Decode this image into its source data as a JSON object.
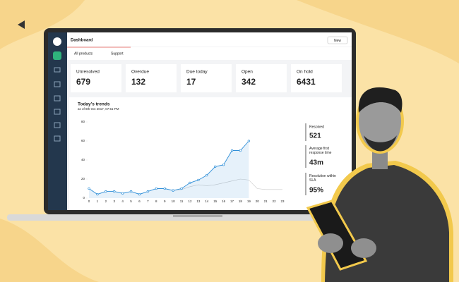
{
  "header": {
    "title": "Dashboard",
    "button": "New"
  },
  "filters": [
    "All products",
    "Support"
  ],
  "cards": [
    {
      "label": "Unresolved",
      "value": 679
    },
    {
      "label": "Overdue",
      "value": 132
    },
    {
      "label": "Due today",
      "value": 17
    },
    {
      "label": "Open",
      "value": 342
    },
    {
      "label": "On hold",
      "value": 6431
    }
  ],
  "chart_data": {
    "type": "line",
    "title": "Today's trends",
    "subtitle": "as of 8th Oct 2017, 07:51 PM",
    "xlim": [
      0,
      23
    ],
    "xticks": [
      0,
      1,
      2,
      3,
      4,
      5,
      6,
      7,
      8,
      9,
      10,
      11,
      12,
      13,
      14,
      15,
      16,
      17,
      18,
      19,
      20,
      21,
      22,
      23
    ],
    "ylim": [
      0,
      80
    ],
    "yticks": [
      0,
      20,
      40,
      60,
      80
    ],
    "x": [
      0,
      1,
      2,
      3,
      4,
      5,
      6,
      7,
      8,
      9,
      10,
      11,
      12,
      13,
      14,
      15,
      16,
      17,
      18,
      19,
      20,
      21,
      22,
      23
    ],
    "series": [
      {
        "color": "#2f8fd8",
        "values": [
          10,
          4,
          7,
          7,
          5,
          7,
          4,
          7,
          10,
          10,
          8,
          10,
          16,
          19,
          24,
          33,
          35,
          50,
          50,
          60,
          null,
          null,
          null,
          null
        ]
      },
      {
        "color": "#c8c8c8",
        "values": [
          null,
          null,
          null,
          null,
          null,
          null,
          null,
          null,
          null,
          null,
          8,
          9,
          12,
          14,
          13,
          14,
          16,
          18,
          20,
          19,
          10,
          9,
          9,
          9
        ]
      }
    ]
  },
  "stats": [
    {
      "label": "Resolved",
      "value": "521"
    },
    {
      "label": "Average first response time",
      "value": "43m"
    },
    {
      "label": "Resolution within SLA",
      "value": "95%"
    }
  ]
}
